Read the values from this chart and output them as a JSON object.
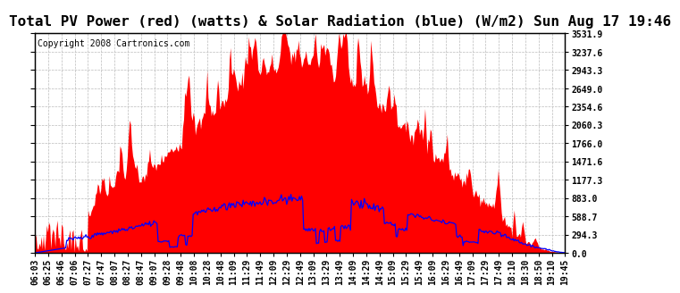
{
  "title": "Total PV Power (red) (watts) & Solar Radiation (blue) (W/m2) Sun Aug 17 19:46",
  "copyright": "Copyright 2008 Cartronics.com",
  "y_max": 3531.9,
  "y_ticks": [
    0.0,
    294.3,
    588.7,
    883.0,
    1177.3,
    1471.6,
    1766.0,
    2060.3,
    2354.6,
    2649.0,
    2943.3,
    3237.6,
    3531.9
  ],
  "background_color": "#ffffff",
  "plot_bg_color": "#ffffff",
  "grid_color": "#bbbbbb",
  "red_color": "#ff0000",
  "blue_color": "#0000ff",
  "title_fontsize": 11.5,
  "copyright_fontsize": 7,
  "tick_fontsize": 7,
  "x_tick_labels": [
    "06:03",
    "06:25",
    "06:46",
    "07:06",
    "07:27",
    "07:47",
    "08:07",
    "08:27",
    "08:47",
    "09:07",
    "09:28",
    "09:48",
    "10:08",
    "10:28",
    "10:48",
    "11:09",
    "11:29",
    "11:49",
    "12:09",
    "12:29",
    "12:49",
    "13:09",
    "13:29",
    "13:49",
    "14:09",
    "14:29",
    "14:49",
    "15:09",
    "15:29",
    "15:49",
    "16:09",
    "16:29",
    "16:49",
    "17:09",
    "17:29",
    "17:49",
    "18:10",
    "18:30",
    "18:50",
    "19:10",
    "19:45"
  ],
  "num_points": 500
}
